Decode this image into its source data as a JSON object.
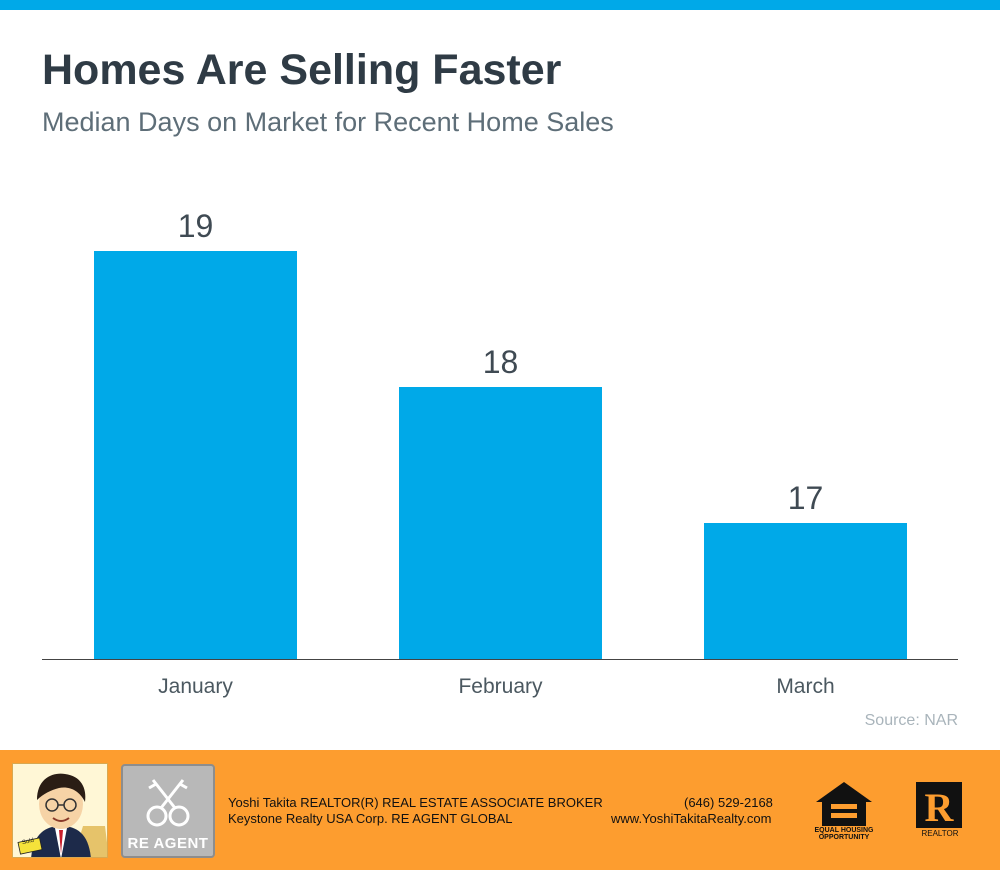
{
  "title": "Homes Are Selling Faster",
  "subtitle": "Median Days on Market for Recent Home Sales",
  "source": "Source: NAR",
  "colors": {
    "bar": "#00a9e8",
    "accent_bar": "#00a9e8",
    "footer": "#fd9d2f",
    "title": "#2f3b45",
    "subtitle": "#5e6e78"
  },
  "chart_data": {
    "type": "bar",
    "title": "",
    "xlabel": "",
    "ylabel": "",
    "categories": [
      "January",
      "February",
      "March"
    ],
    "values": [
      19,
      18,
      17
    ],
    "ylim": [
      16,
      19
    ],
    "grid": false,
    "legend": "none"
  },
  "footer": {
    "name_line": "Yoshi Takita REALTOR(R) REAL ESTATE ASSOCIATE BROKER",
    "company_line": "Keystone Realty USA Corp.  RE AGENT GLOBAL",
    "phone": "(646) 529-2168",
    "website": "www.YoshiTakitaRealty.com",
    "badge_label": "RE AGENT",
    "equal_housing_label_1": "EQUAL HOUSING",
    "equal_housing_label_2": "OPPORTUNITY",
    "realtor_label": "REALTOR",
    "realtor_mark": "R",
    "photo_sign": "Sold"
  }
}
